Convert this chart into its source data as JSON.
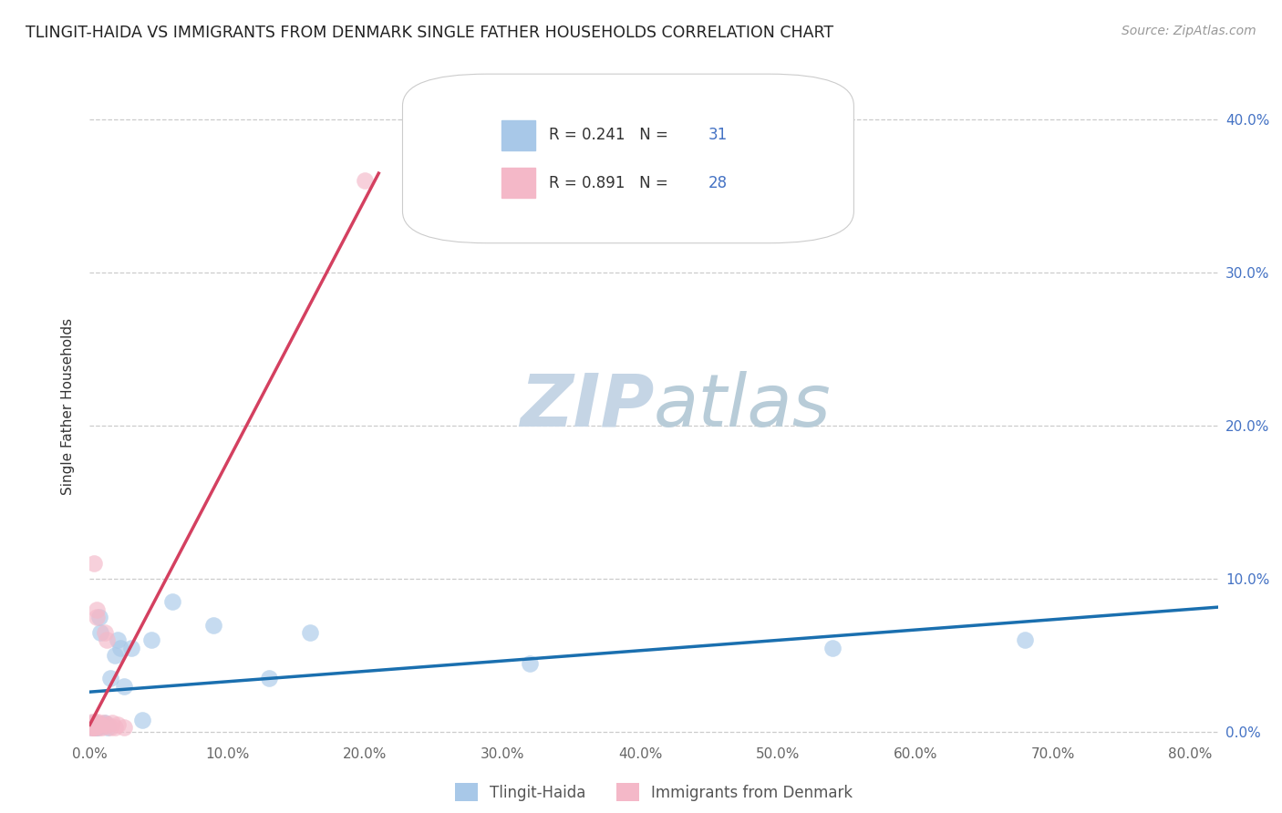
{
  "title": "TLINGIT-HAIDA VS IMMIGRANTS FROM DENMARK SINGLE FATHER HOUSEHOLDS CORRELATION CHART",
  "source": "Source: ZipAtlas.com",
  "ylabel": "Single Father Households",
  "xlim": [
    0.0,
    0.82
  ],
  "ylim": [
    -0.005,
    0.43
  ],
  "legend_r1": "R = 0.241",
  "legend_n1": "N = 31",
  "legend_r2": "R = 0.891",
  "legend_n2": "N = 28",
  "color_blue": "#a8c8e8",
  "color_pink": "#f4b8c8",
  "line_blue": "#1a6faf",
  "line_pink": "#d44060",
  "watermark_zip": "ZIP",
  "watermark_atlas": "atlas",
  "watermark_color_zip": "#d0dce8",
  "watermark_color_atlas": "#c8d8e0",
  "tlingit_haida_x": [
    0.001,
    0.002,
    0.002,
    0.003,
    0.003,
    0.004,
    0.004,
    0.005,
    0.005,
    0.006,
    0.006,
    0.007,
    0.008,
    0.01,
    0.011,
    0.013,
    0.015,
    0.018,
    0.02,
    0.022,
    0.025,
    0.03,
    0.038,
    0.045,
    0.06,
    0.09,
    0.13,
    0.16,
    0.32,
    0.54,
    0.68
  ],
  "tlingit_haida_y": [
    0.003,
    0.004,
    0.006,
    0.003,
    0.005,
    0.004,
    0.006,
    0.003,
    0.005,
    0.004,
    0.003,
    0.075,
    0.065,
    0.005,
    0.006,
    0.003,
    0.035,
    0.05,
    0.06,
    0.055,
    0.03,
    0.055,
    0.008,
    0.06,
    0.085,
    0.07,
    0.035,
    0.065,
    0.045,
    0.055,
    0.06
  ],
  "denmark_x": [
    0.001,
    0.001,
    0.002,
    0.002,
    0.002,
    0.003,
    0.003,
    0.003,
    0.004,
    0.004,
    0.004,
    0.005,
    0.005,
    0.006,
    0.007,
    0.007,
    0.008,
    0.009,
    0.01,
    0.011,
    0.012,
    0.013,
    0.015,
    0.016,
    0.018,
    0.02,
    0.025,
    0.2
  ],
  "denmark_y": [
    0.003,
    0.005,
    0.003,
    0.005,
    0.007,
    0.003,
    0.11,
    0.003,
    0.003,
    0.005,
    0.007,
    0.075,
    0.08,
    0.007,
    0.005,
    0.003,
    0.005,
    0.003,
    0.006,
    0.065,
    0.06,
    0.005,
    0.003,
    0.006,
    0.003,
    0.005,
    0.003,
    0.36
  ],
  "x_ticks": [
    0.0,
    0.1,
    0.2,
    0.3,
    0.4,
    0.5,
    0.6,
    0.7,
    0.8
  ],
  "y_ticks": [
    0.0,
    0.1,
    0.2,
    0.3,
    0.4
  ]
}
